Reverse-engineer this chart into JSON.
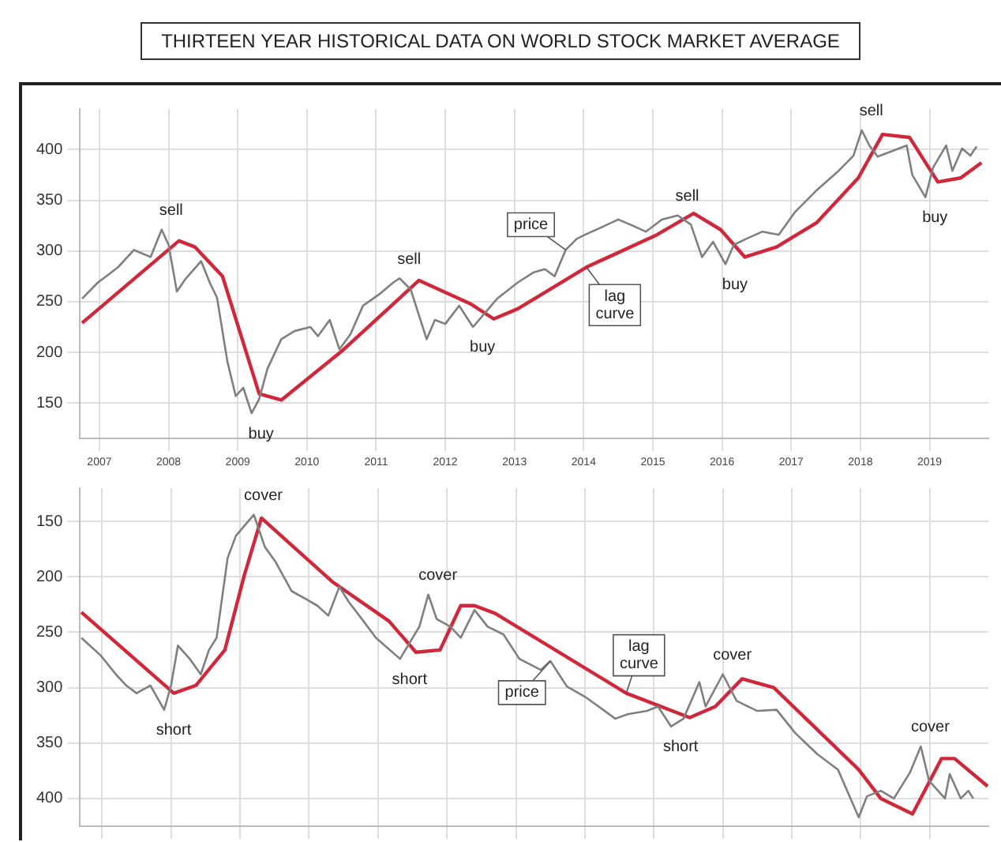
{
  "chart_data": [
    {
      "type": "line",
      "title": "THIRTEEN YEAR HISTORICAL DATA ON WORLD STOCK MARKET AVERAGE",
      "xlim": [
        2006.72,
        2019.85
      ],
      "xticks": [
        2007,
        2008,
        2009,
        2010,
        2011,
        2012,
        2013,
        2014,
        2015,
        2016,
        2017,
        2018,
        2019
      ],
      "ylim": [
        115,
        440
      ],
      "yticks": [
        150,
        200,
        250,
        300,
        350,
        400
      ],
      "grid": true,
      "legend": false,
      "series": [
        {
          "name": "price",
          "color": "#7f7f7f",
          "x": [
            2006.75,
            2006.98,
            2007.1,
            2007.27,
            2007.5,
            2007.74,
            2007.9,
            2008.0,
            2008.12,
            2008.24,
            2008.47,
            2008.6,
            2008.7,
            2008.85,
            2008.97,
            2009.08,
            2009.2,
            2009.31,
            2009.43,
            2009.63,
            2009.82,
            2010.05,
            2010.16,
            2010.33,
            2010.47,
            2010.63,
            2010.81,
            2011.04,
            2011.25,
            2011.34,
            2011.5,
            2011.73,
            2011.85,
            2012.0,
            2012.2,
            2012.4,
            2012.75,
            2013.05,
            2013.28,
            2013.44,
            2013.58,
            2013.74,
            2013.9,
            2014.02,
            2014.28,
            2014.5,
            2014.74,
            2014.9,
            2015.13,
            2015.36,
            2015.55,
            2015.71,
            2015.87,
            2016.05,
            2016.17,
            2016.35,
            2016.58,
            2016.82,
            2017.05,
            2017.37,
            2017.67,
            2017.9,
            2018.02,
            2018.13,
            2018.25,
            2018.67,
            2018.75,
            2018.94,
            2019.05,
            2019.24,
            2019.33,
            2019.47,
            2019.59,
            2019.68
          ],
          "values": [
            253,
            269,
            275,
            284,
            301,
            294,
            321,
            306,
            260,
            272,
            290,
            268,
            254,
            191,
            157,
            165,
            140,
            154,
            184,
            213,
            221,
            225,
            216,
            232,
            203,
            218,
            246,
            257,
            269,
            273,
            262,
            213,
            232,
            228,
            246,
            225,
            253,
            269,
            279,
            282,
            275,
            301,
            312,
            316,
            324,
            331,
            324,
            319,
            331,
            335,
            326,
            294,
            309,
            287,
            306,
            312,
            319,
            316,
            338,
            360,
            378,
            394,
            419,
            404,
            393,
            404,
            375,
            353,
            382,
            404,
            379,
            401,
            394,
            403
          ]
        },
        {
          "name": "lag curve",
          "color": "#d0273a",
          "x": [
            2006.75,
            2008.15,
            2008.38,
            2008.78,
            2009.31,
            2009.63,
            2010.5,
            2011.62,
            2012.36,
            2012.7,
            2013.05,
            2014.04,
            2015.06,
            2015.59,
            2015.98,
            2016.33,
            2016.79,
            2017.37,
            2017.97,
            2018.32,
            2018.71,
            2019.12,
            2019.45,
            2019.75
          ],
          "values": [
            229,
            310,
            304,
            275,
            159,
            153,
            201,
            271,
            248,
            233,
            243,
            284,
            316,
            337,
            321,
            294,
            304,
            328,
            372,
            415,
            412,
            368,
            372,
            387
          ]
        }
      ],
      "annotations": [
        {
          "text": "sell",
          "x": 2007.9,
          "y": 321
        },
        {
          "text": "buy",
          "x": 2009.2,
          "y": 140
        },
        {
          "text": "sell",
          "x": 2011.34,
          "y": 273
        },
        {
          "text": "buy",
          "x": 2012.4,
          "y": 225
        },
        {
          "text": "sell",
          "x": 2015.36,
          "y": 335
        },
        {
          "text": "buy",
          "x": 2016.05,
          "y": 287
        },
        {
          "text": "sell",
          "x": 2018.02,
          "y": 419
        },
        {
          "text": "buy",
          "x": 2018.94,
          "y": 353
        }
      ]
    },
    {
      "type": "line",
      "xlim": [
        2006.68,
        2019.85
      ],
      "xticks": [
        2007,
        2008,
        2009,
        2010,
        2011,
        2012,
        2013,
        2014,
        2015,
        2016,
        2017,
        2018,
        2019
      ],
      "ylim": [
        425,
        120
      ],
      "yticks": [
        150,
        200,
        250,
        300,
        350,
        400
      ],
      "grid": true,
      "legend": false,
      "tick_labels": "y",
      "series": [
        {
          "name": "price",
          "color": "#7f7f7f",
          "x": [
            2006.7,
            2006.98,
            2007.2,
            2007.35,
            2007.5,
            2007.7,
            2007.9,
            2008.0,
            2008.1,
            2008.27,
            2008.43,
            2008.55,
            2008.66,
            2008.82,
            2008.94,
            2009.2,
            2009.36,
            2009.52,
            2009.75,
            2009.98,
            2010.12,
            2010.28,
            2010.44,
            2010.58,
            2010.79,
            2010.97,
            2011.32,
            2011.6,
            2011.73,
            2011.85,
            2012.05,
            2012.2,
            2012.4,
            2012.59,
            2012.82,
            2013.05,
            2013.36,
            2013.5,
            2013.74,
            2014.02,
            2014.2,
            2014.44,
            2014.62,
            2014.9,
            2015.06,
            2015.25,
            2015.43,
            2015.66,
            2015.75,
            2016.0,
            2016.2,
            2016.5,
            2016.78,
            2017.05,
            2017.37,
            2017.67,
            2017.97,
            2018.09,
            2018.29,
            2018.48,
            2018.71,
            2018.87,
            2018.99,
            2019.22,
            2019.29,
            2019.45,
            2019.56,
            2019.63
          ],
          "values": [
            255,
            271,
            288,
            298,
            305,
            298,
            320,
            298,
            262,
            274,
            288,
            266,
            255,
            183,
            163,
            144,
            173,
            187,
            213,
            221,
            226,
            235,
            209,
            223,
            240,
            255,
            274,
            245,
            216,
            238,
            245,
            255,
            230,
            245,
            252,
            274,
            284,
            276,
            299,
            309,
            317,
            328,
            324,
            321,
            317,
            335,
            328,
            295,
            317,
            288,
            312,
            321,
            320,
            341,
            360,
            374,
            417,
            398,
            393,
            400,
            377,
            353,
            384,
            400,
            378,
            400,
            393,
            400
          ]
        },
        {
          "name": "lag curve",
          "color": "#d0273a",
          "x": [
            2006.7,
            2008.04,
            2008.36,
            2008.78,
            2009.06,
            2009.31,
            2010.35,
            2011.16,
            2011.55,
            2011.9,
            2012.2,
            2012.4,
            2012.7,
            2014.6,
            2015.52,
            2015.89,
            2016.28,
            2016.74,
            2017.97,
            2018.29,
            2018.75,
            2019.17,
            2019.36,
            2019.84
          ],
          "values": [
            232,
            305,
            298,
            266,
            199,
            147,
            205,
            240,
            268,
            266,
            226,
            226,
            233,
            305,
            327,
            317,
            292,
            300,
            374,
            400,
            414,
            364,
            364,
            389
          ]
        }
      ],
      "annotations": [
        {
          "text": "cover",
          "x": 2009.2,
          "y": 144
        },
        {
          "text": "short",
          "x": 2007.9,
          "y": 320
        },
        {
          "text": "short",
          "x": 2011.32,
          "y": 274
        },
        {
          "text": "cover",
          "x": 2011.73,
          "y": 216
        },
        {
          "text": "short",
          "x": 2015.25,
          "y": 335
        },
        {
          "text": "cover",
          "x": 2016.0,
          "y": 288
        },
        {
          "text": "cover",
          "x": 2018.87,
          "y": 353
        }
      ]
    }
  ]
}
